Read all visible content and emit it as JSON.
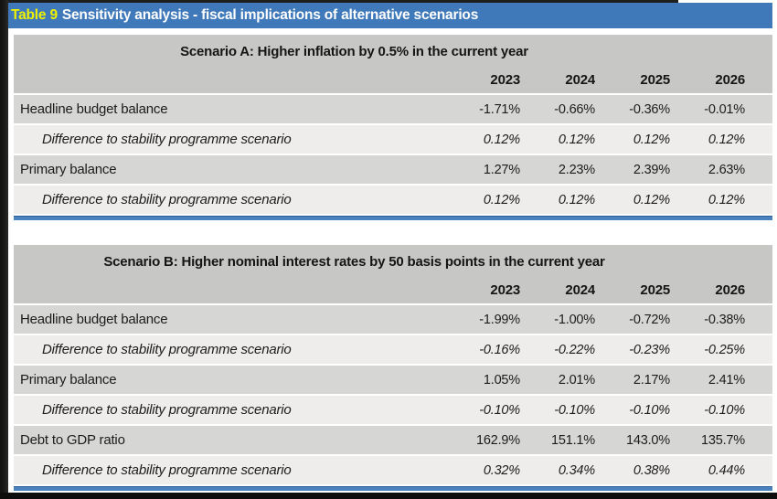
{
  "caption": {
    "number": "Table 9",
    "title": "Sensitivity analysis - fiscal implications of alternative scenarios"
  },
  "years": [
    "2023",
    "2024",
    "2025",
    "2026"
  ],
  "colors": {
    "caption_bar_blue": "#3f79b9",
    "caption_number_yellow": "#eef200",
    "header_gray": "#c7c7c6",
    "row_main_gray": "#d6d6d4",
    "row_diff_light": "#eeedeb",
    "bottom_rule_blue": "#4a82c0",
    "scan_edge_black": "#121210"
  },
  "tables": [
    {
      "header": "Scenario A: Higher inflation by 0.5% in the current year",
      "rows": [
        {
          "label": "Headline budget balance",
          "values": [
            "-1.71%",
            "-0.66%",
            "-0.36%",
            "-0.01%"
          ]
        },
        {
          "label": "Difference to stability programme scenario",
          "values": [
            "0.12%",
            "0.12%",
            "0.12%",
            "0.12%"
          ]
        },
        {
          "label": "Primary balance",
          "values": [
            "1.27%",
            "2.23%",
            "2.39%",
            "2.63%"
          ]
        },
        {
          "label": "Difference to stability programme scenario",
          "values": [
            "0.12%",
            "0.12%",
            "0.12%",
            "0.12%"
          ]
        }
      ]
    },
    {
      "header": "Scenario B: Higher nominal interest rates by 50 basis points in the current year",
      "rows": [
        {
          "label": "Headline budget balance",
          "values": [
            "-1.99%",
            "-1.00%",
            "-0.72%",
            "-0.38%"
          ]
        },
        {
          "label": "Difference to stability programme scenario",
          "values": [
            "-0.16%",
            "-0.22%",
            "-0.23%",
            "-0.25%"
          ]
        },
        {
          "label": "Primary balance",
          "values": [
            "1.05%",
            "2.01%",
            "2.17%",
            "2.41%"
          ]
        },
        {
          "label": "Difference to stability programme scenario",
          "values": [
            "-0.10%",
            "-0.10%",
            "-0.10%",
            "-0.10%"
          ]
        },
        {
          "label": "Debt to GDP ratio",
          "values": [
            "162.9%",
            "151.1%",
            "143.0%",
            "135.7%"
          ]
        },
        {
          "label": "Difference to stability programme scenario",
          "values": [
            "0.32%",
            "0.34%",
            "0.38%",
            "0.44%"
          ]
        }
      ]
    }
  ]
}
